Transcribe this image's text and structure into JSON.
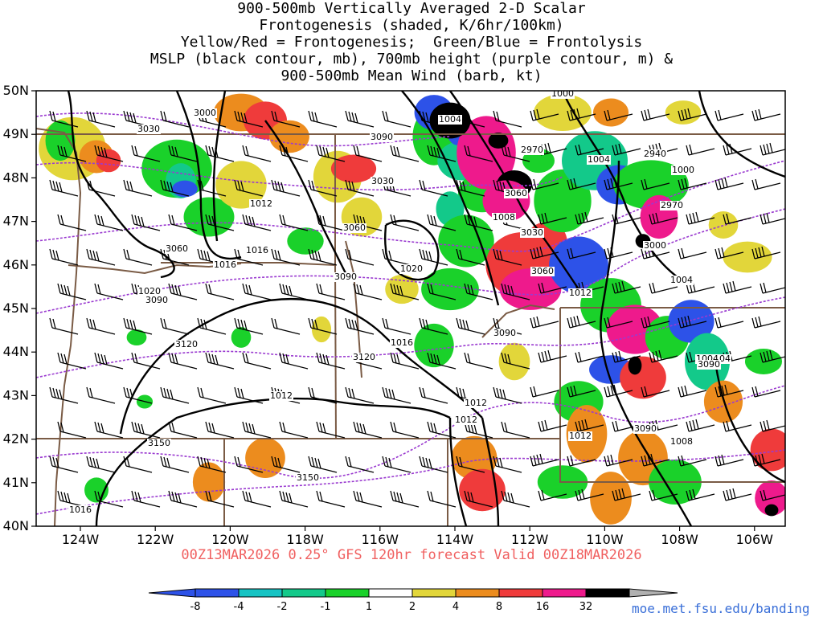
{
  "title_lines": [
    "900-500mb Vertically Averaged 2-D Scalar",
    "Frontogenesis (shaded, K/6hr/100km)",
    "Yellow/Red = Frontogenesis;  Green/Blue = Frontolysis",
    "MSLP (black contour, mb), 700mb height (purple contour, m) &",
    "900-500mb Mean Wind (barb, kt)"
  ],
  "lat_labels": [
    "50N",
    "49N",
    "48N",
    "47N",
    "46N",
    "45N",
    "44N",
    "43N",
    "42N",
    "41N",
    "40N"
  ],
  "lon_labels": [
    "124W",
    "122W",
    "120W",
    "118W",
    "116W",
    "114W",
    "112W",
    "110W",
    "108W",
    "106W"
  ],
  "footer": "00Z13MAR2026 0.25° GFS 120hr forecast Valid 00Z18MAR2026",
  "website": "moe.met.fsu.edu/banding",
  "colorbar": {
    "ticks": [
      "-8",
      "-4",
      "-2",
      "-1",
      "1",
      "2",
      "4",
      "8",
      "16",
      "32"
    ],
    "colors": [
      "#2d52e8",
      "#17c4c4",
      "#13c98a",
      "#1ad12a",
      "#ffffff",
      "#e2d63a",
      "#ec8c1e",
      "#ef3b3b",
      "#ee1a8c",
      "#000000"
    ]
  },
  "colors": {
    "mslp": "#000000",
    "height700": "#9a3ad0",
    "borders": "#7a5b45",
    "barbs": "#000000"
  },
  "mslp_labels": [
    "1000",
    "1004",
    "1004",
    "1008",
    "1012",
    "1016",
    "1016",
    "1020",
    "1020",
    "1016",
    "1012",
    "1012",
    "1012",
    "1012",
    "1004",
    "1004",
    "1008",
    "1000",
    "1004",
    "1012",
    "1016"
  ],
  "height_labels": [
    "3000",
    "3030",
    "3090",
    "3030",
    "3060",
    "3060",
    "3090",
    "3090",
    "3120",
    "3120",
    "3150",
    "3150",
    "2970",
    "3030",
    "3060",
    "3090",
    "3060",
    "2940",
    "2970",
    "3000",
    "3090",
    "3090"
  ],
  "map_region": {
    "lon_min": -125,
    "lon_max": -105,
    "lat_min": 40,
    "lat_max": 50
  }
}
